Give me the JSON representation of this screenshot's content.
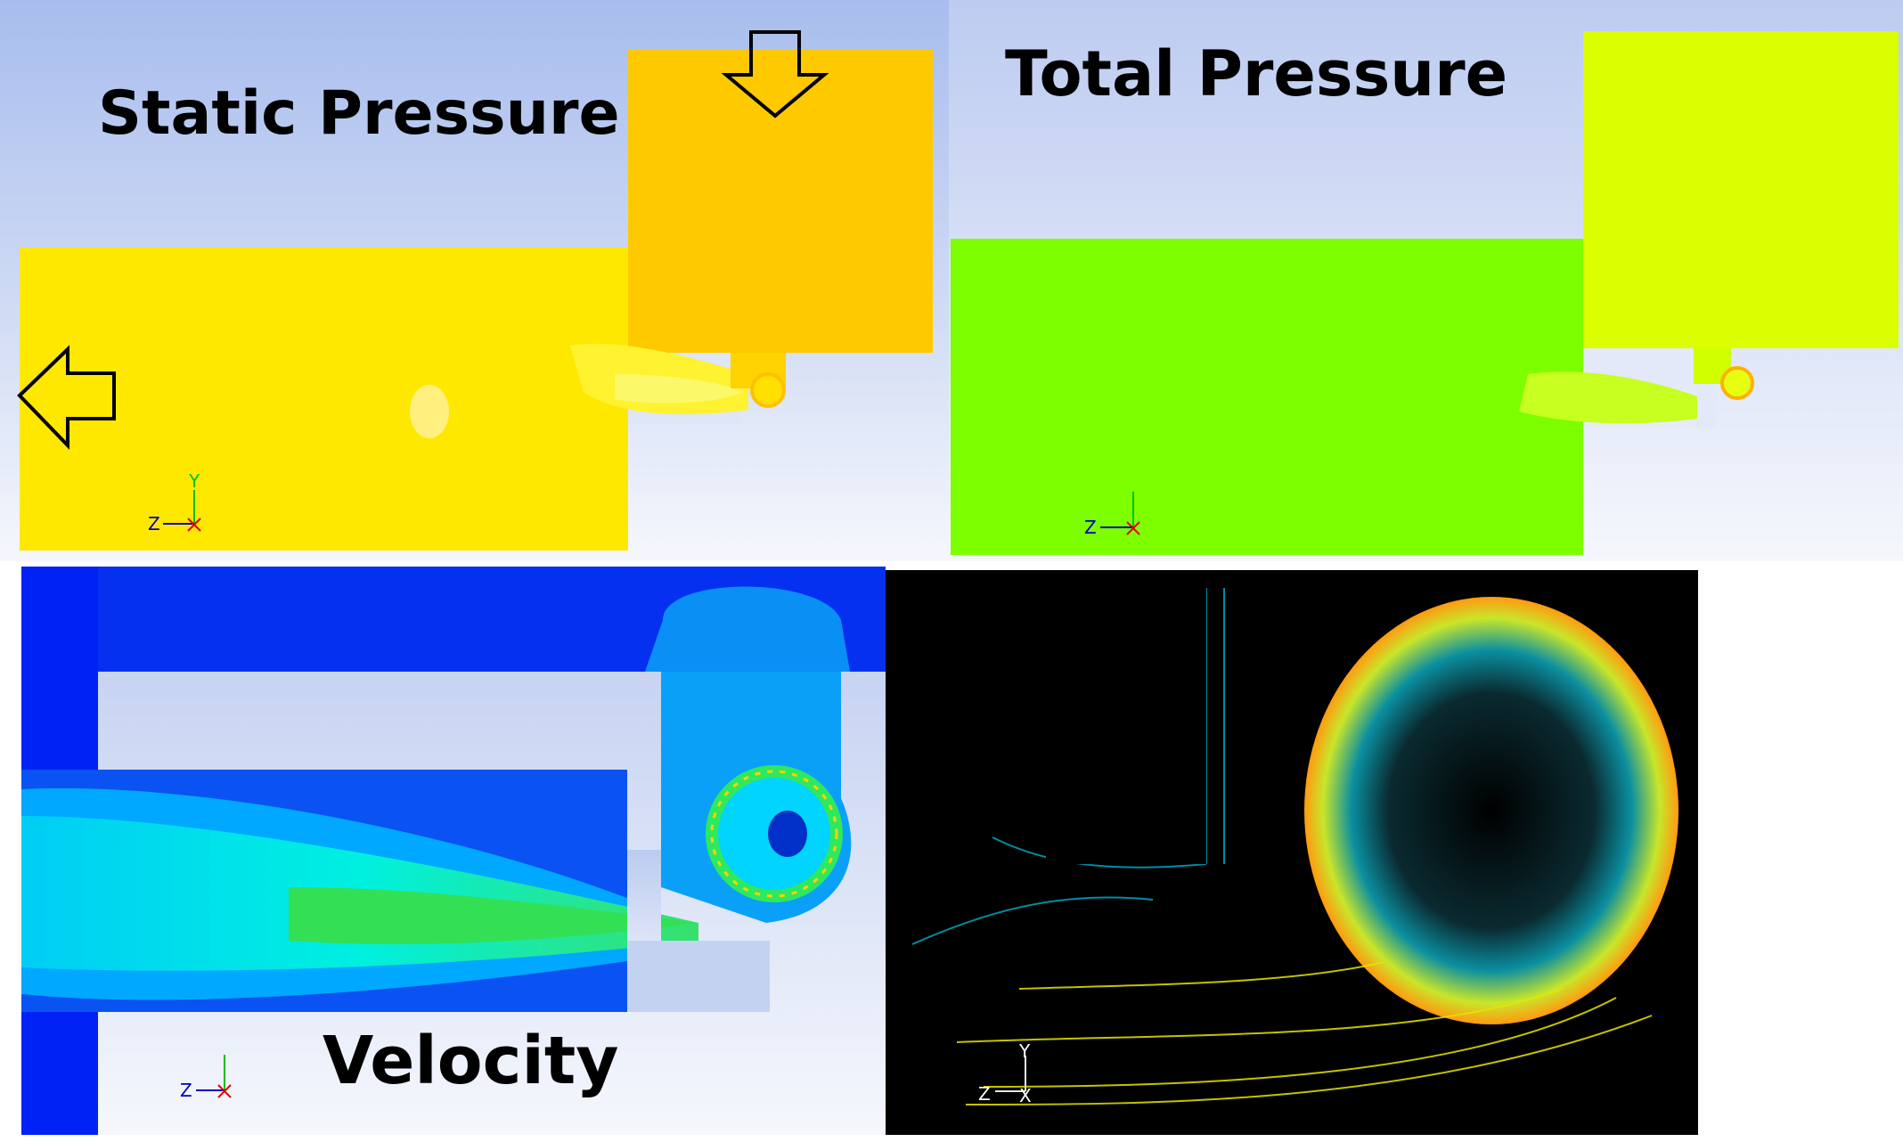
{
  "panels": {
    "static_pressure": {
      "title": "Static Pressure"
    },
    "total_pressure": {
      "title": "Total Pressure"
    },
    "velocity": {
      "title": "Velocity"
    },
    "vectors": {
      "title": ""
    }
  },
  "axis_triad": {
    "y": "Y",
    "z": "Z",
    "x": "X"
  },
  "colors": {
    "background_top": "#a9bfee",
    "background_bottom": "#f4f6fc",
    "static_pressure_outlet": "#ffe600",
    "static_pressure_inlet": "#ffc400",
    "total_pressure_outlet": "#7dff00",
    "total_pressure_inlet": "#d8ff00",
    "velocity_low": "#0026ff",
    "velocity_mid": "#00e5ff",
    "velocity_high": "#33e04a",
    "vectors_background": "#000000",
    "axis_x": "#e00000",
    "axis_y": "#00c000",
    "axis_z": "#0000c0"
  },
  "icons": {
    "outflow": "arrow-left-outline-icon",
    "inflow": "arrow-down-outline-icon"
  }
}
